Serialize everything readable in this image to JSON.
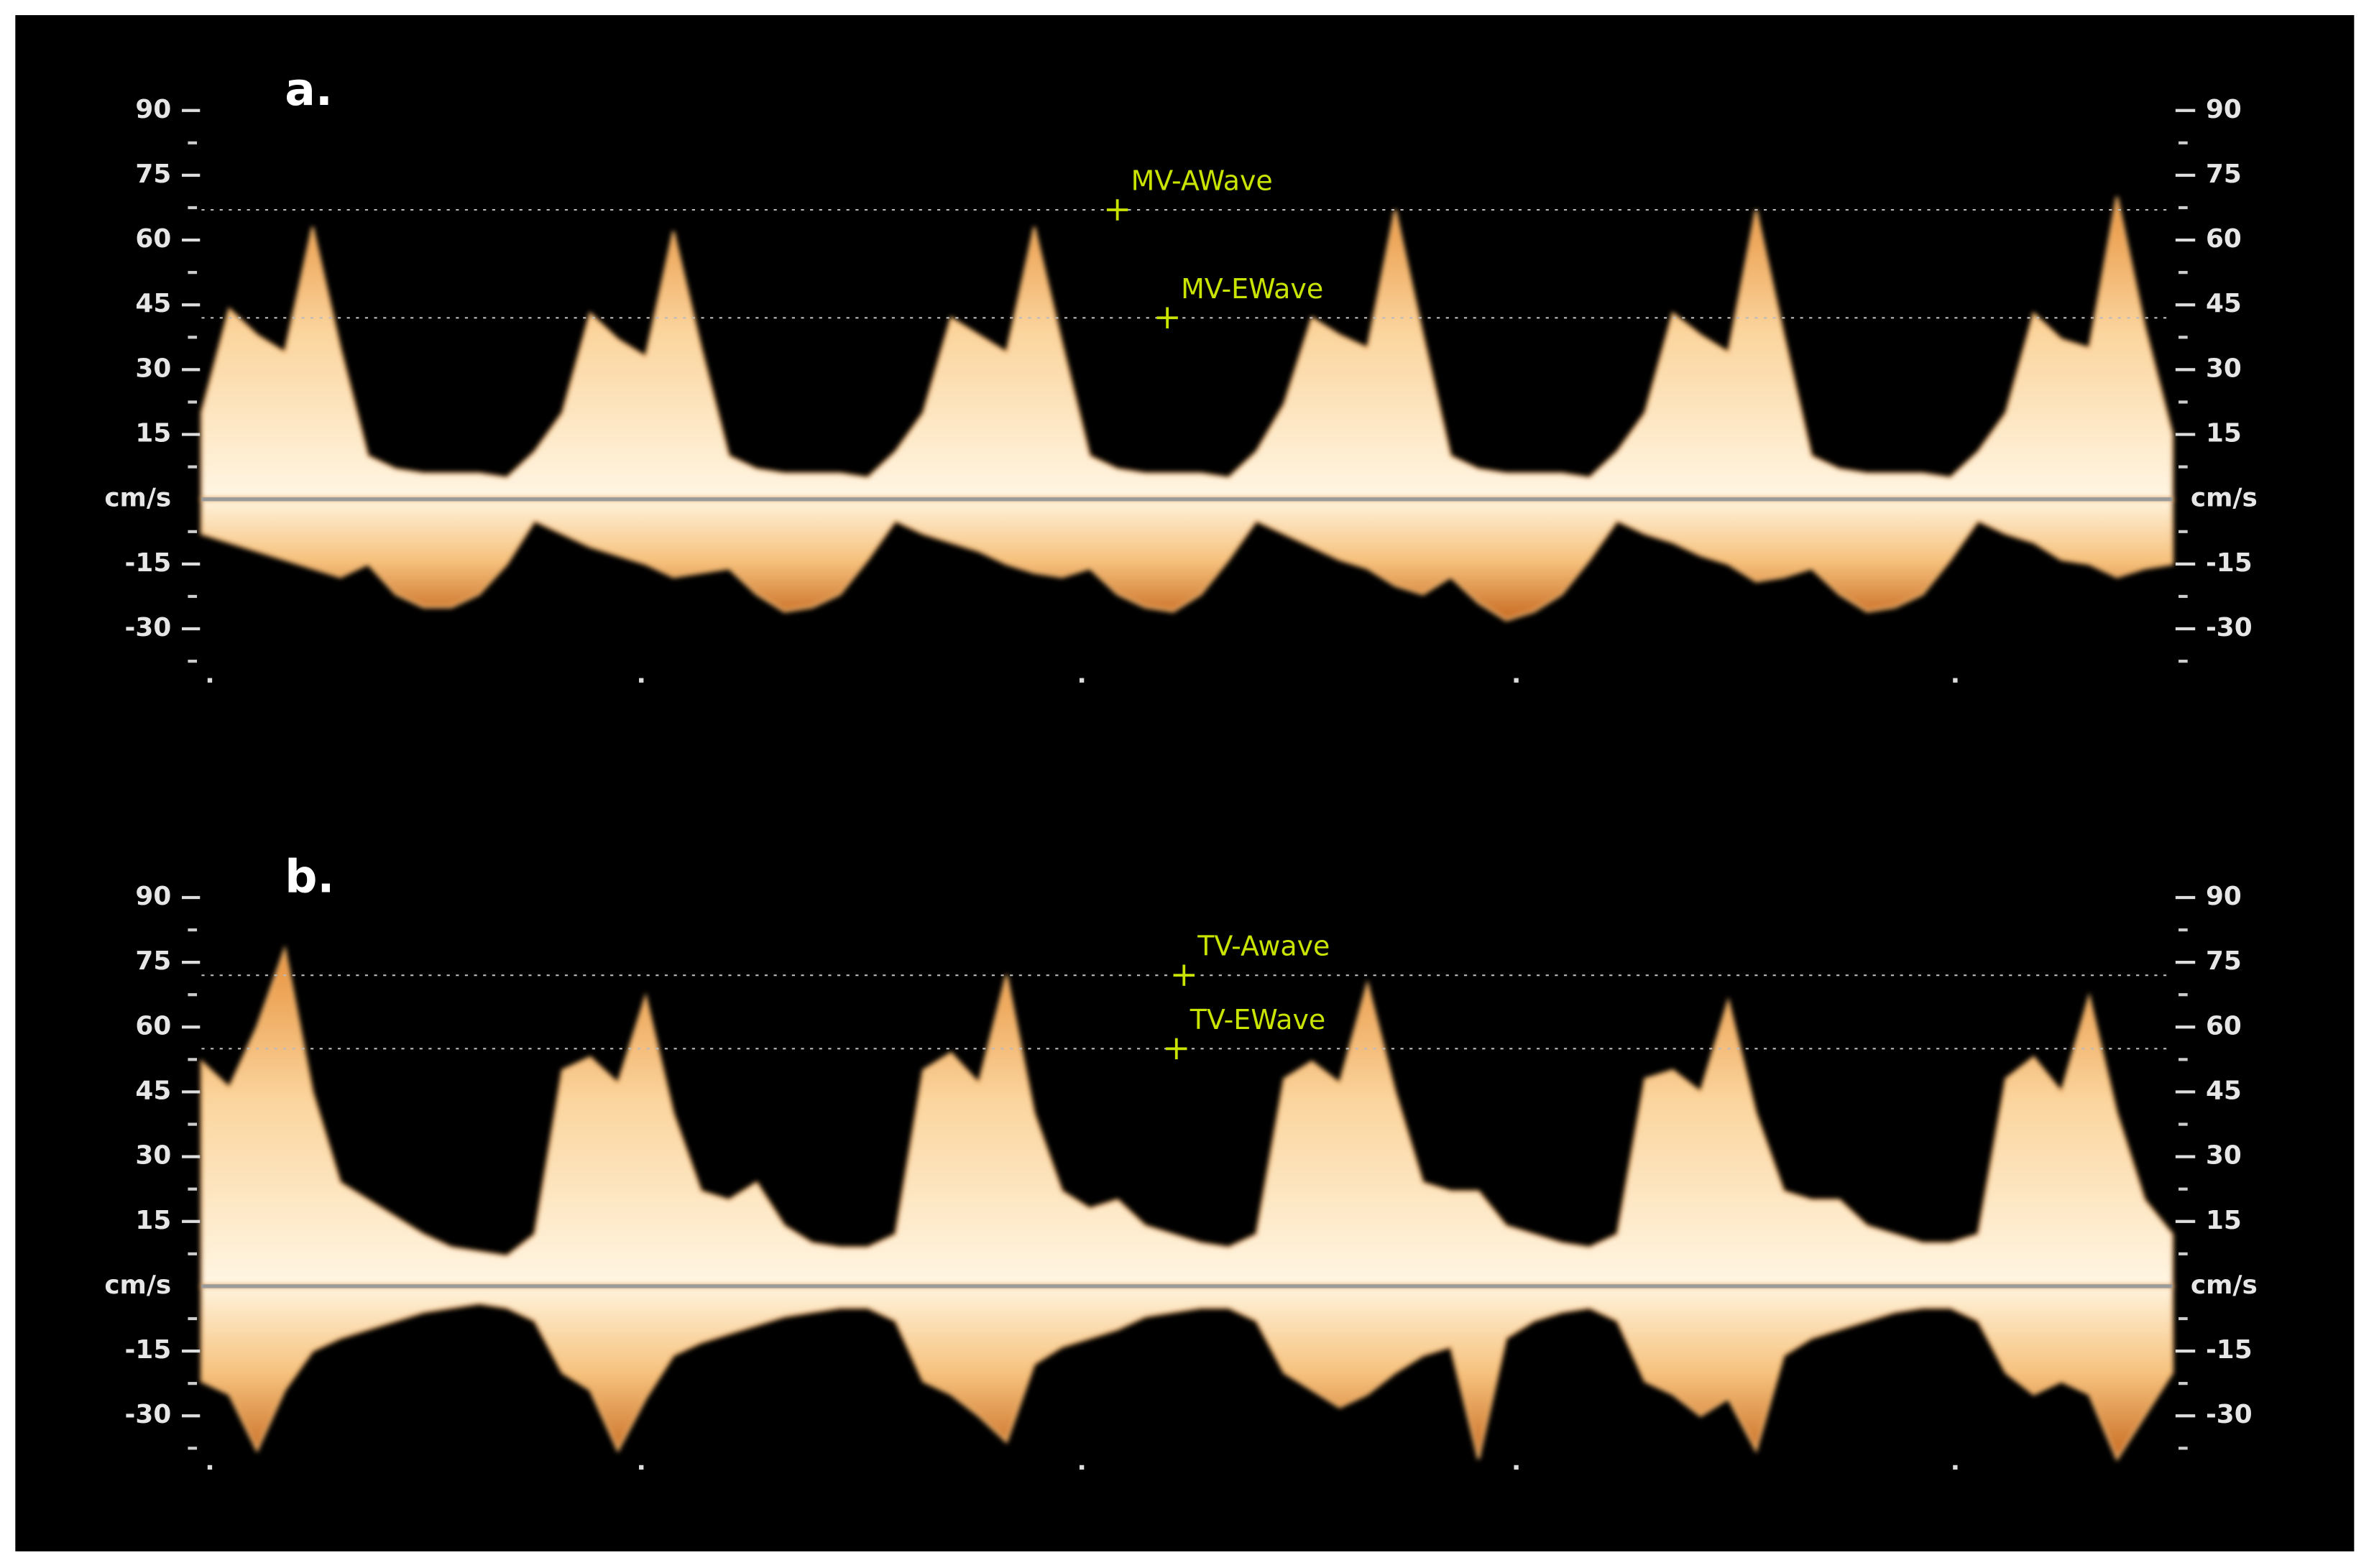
{
  "chart_data": [
    {
      "type": "area",
      "title": "a.",
      "ylim": [
        -40,
        90
      ],
      "yticks": [
        -30,
        -15,
        {
          "value": 0,
          "label": "cm/s"
        },
        15,
        30,
        45,
        60,
        75,
        90
      ],
      "yminor": [
        -37.5,
        -22.5,
        -7.5,
        7.5,
        22.5,
        37.5,
        52.5,
        67.5,
        82.5
      ],
      "markers": [
        {
          "label": "MV-AWave",
          "value": 67
        },
        {
          "label": "MV-EWave",
          "value": 42
        }
      ],
      "series": [
        {
          "color": "#f4b66c",
          "values": [
            20,
            44,
            38,
            34,
            63,
            35,
            10,
            7,
            6,
            6,
            6,
            5,
            11,
            20,
            43,
            37,
            33,
            62,
            35,
            10,
            7,
            6,
            6,
            6,
            5,
            11,
            20,
            42,
            38,
            34,
            63,
            36,
            10,
            7,
            6,
            6,
            6,
            5,
            11,
            22,
            42,
            38,
            35,
            67,
            38,
            10,
            7,
            6,
            6,
            6,
            5,
            11,
            20,
            43,
            38,
            34,
            67,
            38,
            10,
            7,
            6,
            6,
            6,
            5,
            11,
            20,
            43,
            37,
            35,
            70,
            40,
            15
          ]
        },
        {
          "color": "#f4b66c",
          "values": [
            -8,
            -10,
            -12,
            -14,
            -16,
            -18,
            -15,
            -22,
            -25,
            -25,
            -22,
            -15,
            -5,
            -8,
            -11,
            -13,
            -15,
            -18,
            -17,
            -16,
            -22,
            -26,
            -25,
            -22,
            -14,
            -5,
            -8,
            -10,
            -12,
            -15,
            -17,
            -18,
            -16,
            -22,
            -25,
            -26,
            -22,
            -14,
            -5,
            -8,
            -11,
            -14,
            -16,
            -20,
            -22,
            -18,
            -24,
            -28,
            -26,
            -22,
            -14,
            -5,
            -8,
            -10,
            -13,
            -15,
            -19,
            -18,
            -16,
            -22,
            -26,
            -25,
            -22,
            -14,
            -5,
            -8,
            -10,
            -14,
            -15,
            -18,
            -16,
            -15
          ]
        }
      ]
    },
    {
      "type": "area",
      "title": "b.",
      "ylim": [
        -40,
        90
      ],
      "yticks": [
        -30,
        -15,
        {
          "value": 0,
          "label": "cm/s"
        },
        15,
        30,
        45,
        60,
        75,
        90
      ],
      "yminor": [
        -37.5,
        -22.5,
        -7.5,
        7.5,
        22.5,
        37.5,
        52.5,
        67.5,
        82.5
      ],
      "markers": [
        {
          "label": "TV-Awave",
          "value": 72
        },
        {
          "label": "TV-EWave",
          "value": 55
        }
      ],
      "series": [
        {
          "color": "#f4b66c",
          "values": [
            52,
            46,
            60,
            78,
            45,
            24,
            20,
            16,
            12,
            9,
            8,
            7,
            12,
            50,
            53,
            47,
            67,
            40,
            22,
            20,
            24,
            14,
            10,
            9,
            9,
            12,
            50,
            54,
            47,
            72,
            40,
            22,
            18,
            20,
            14,
            12,
            10,
            9,
            12,
            48,
            52,
            47,
            70,
            45,
            24,
            22,
            22,
            14,
            12,
            10,
            9,
            12,
            48,
            50,
            45,
            66,
            40,
            22,
            20,
            20,
            14,
            12,
            10,
            10,
            12,
            48,
            53,
            45,
            67,
            40,
            20,
            12
          ]
        },
        {
          "color": "#f4b66c",
          "values": [
            -22,
            -25,
            -38,
            -24,
            -15,
            -12,
            -10,
            -8,
            -6,
            -5,
            -4,
            -5,
            -8,
            -20,
            -24,
            -38,
            -26,
            -16,
            -13,
            -11,
            -9,
            -7,
            -6,
            -5,
            -5,
            -8,
            -22,
            -25,
            -30,
            -36,
            -18,
            -14,
            -12,
            -10,
            -7,
            -6,
            -5,
            -5,
            -8,
            -20,
            -24,
            -28,
            -25,
            -20,
            -16,
            -14,
            -40,
            -12,
            -8,
            -6,
            -5,
            -8,
            -22,
            -25,
            -30,
            -26,
            -38,
            -16,
            -12,
            -10,
            -8,
            -6,
            -5,
            -5,
            -8,
            -20,
            -25,
            -22,
            -25,
            -40,
            -30,
            -20
          ]
        }
      ]
    }
  ]
}
